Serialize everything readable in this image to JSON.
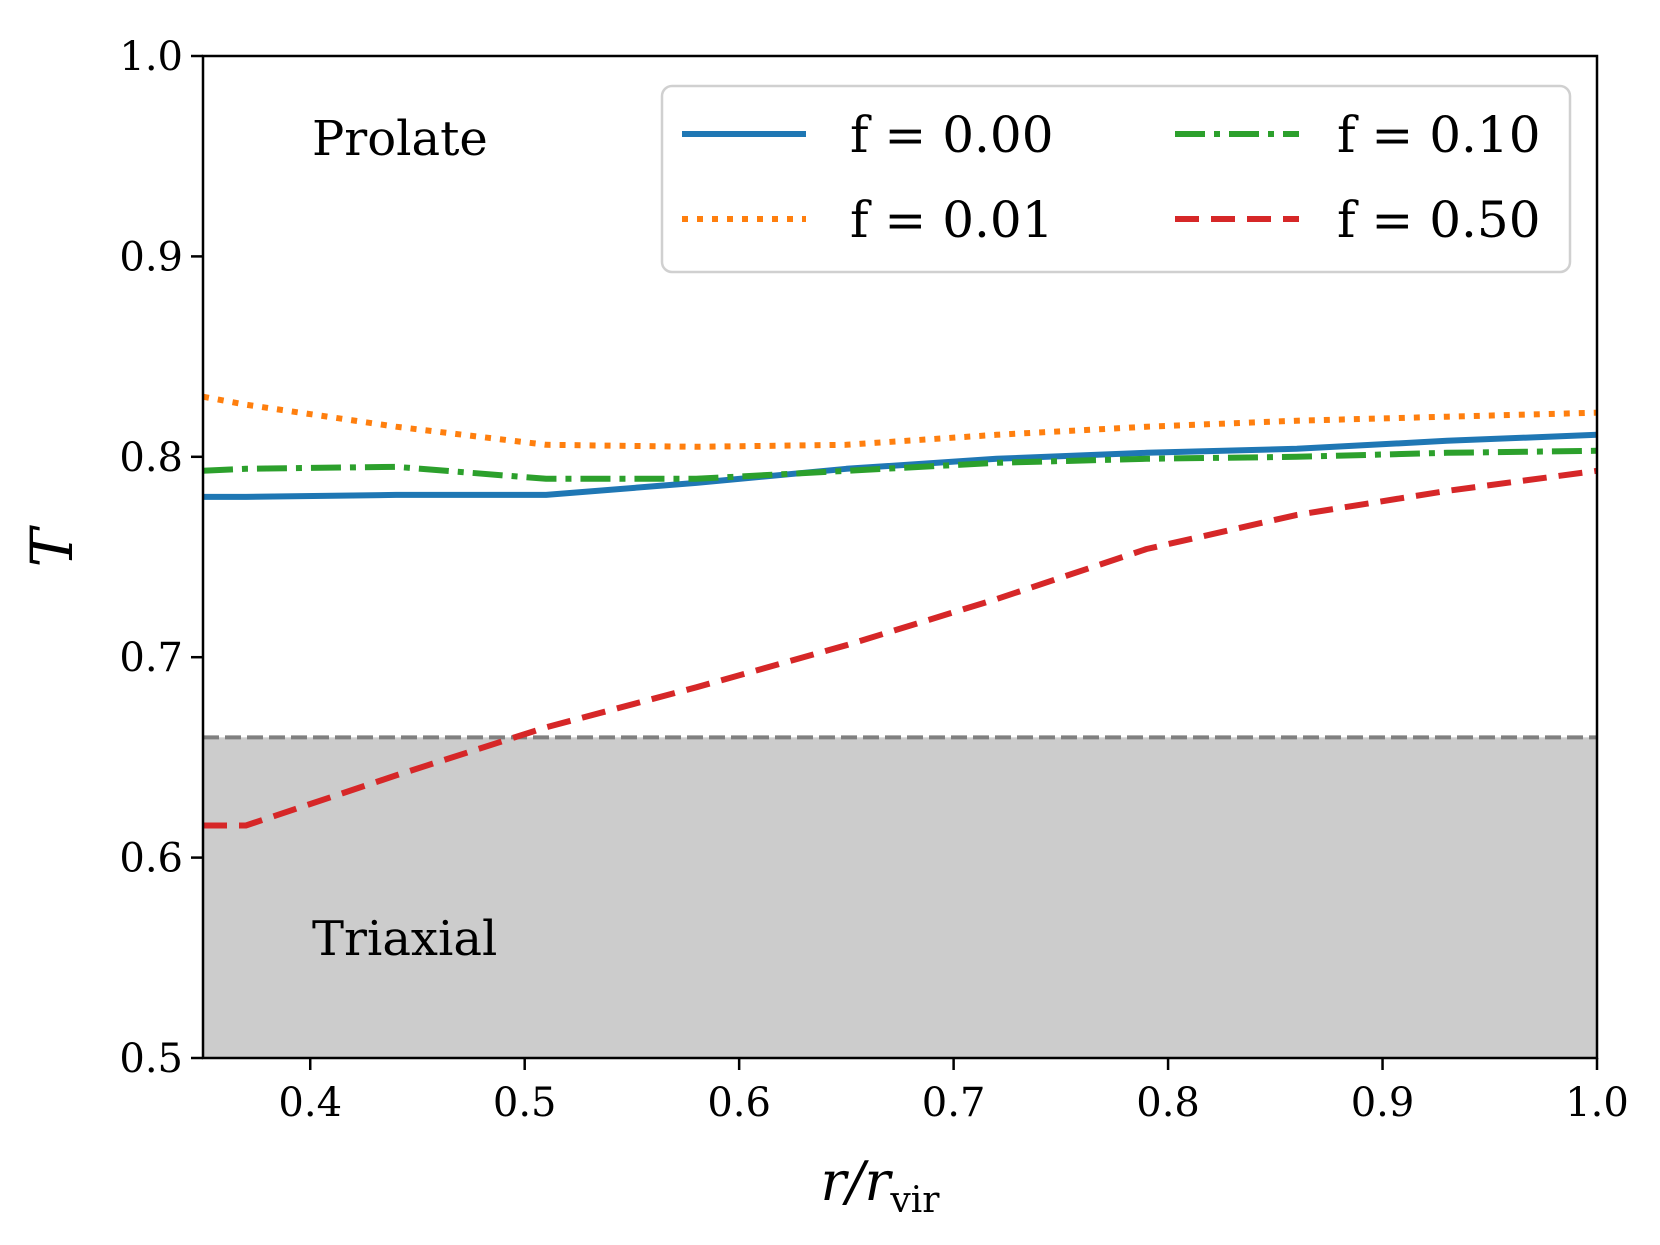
{
  "chart_data": {
    "type": "line",
    "xlabel": "r/r",
    "xlabel_sub": "vir",
    "ylabel": "T",
    "xlim": [
      0.35,
      1.0
    ],
    "ylim": [
      0.5,
      1.0
    ],
    "xticks": [
      "0.4",
      "0.5",
      "0.6",
      "0.7",
      "0.8",
      "0.9",
      "1.0"
    ],
    "yticks": [
      "0.5",
      "0.6",
      "0.7",
      "0.8",
      "0.9",
      "1.0"
    ],
    "grid": false,
    "legend_position": "top-right",
    "region_labels": {
      "top": "Prolate",
      "bottom": "Triaxial"
    },
    "threshold": {
      "y": 0.66,
      "shaded_below": true,
      "color": "#cccccc",
      "line_color": "#808080"
    },
    "series": [
      {
        "name": "f = 0.00",
        "color": "#1f77b4",
        "style": "solid",
        "x": [
          0.35,
          0.37,
          0.44,
          0.51,
          0.58,
          0.65,
          0.72,
          0.79,
          0.86,
          0.93,
          1.0
        ],
        "y": [
          0.78,
          0.78,
          0.781,
          0.781,
          0.787,
          0.794,
          0.799,
          0.802,
          0.804,
          0.808,
          0.811
        ]
      },
      {
        "name": "f = 0.01",
        "color": "#ff7f0e",
        "style": "dotted",
        "x": [
          0.35,
          0.37,
          0.44,
          0.51,
          0.58,
          0.65,
          0.72,
          0.79,
          0.86,
          0.93,
          1.0
        ],
        "y": [
          0.83,
          0.826,
          0.815,
          0.806,
          0.805,
          0.806,
          0.811,
          0.815,
          0.818,
          0.82,
          0.822
        ]
      },
      {
        "name": "f = 0.10",
        "color": "#2ca02c",
        "style": "dashdot",
        "x": [
          0.35,
          0.37,
          0.44,
          0.51,
          0.58,
          0.65,
          0.72,
          0.79,
          0.86,
          0.93,
          1.0
        ],
        "y": [
          0.793,
          0.794,
          0.795,
          0.789,
          0.789,
          0.793,
          0.797,
          0.799,
          0.8,
          0.802,
          0.803
        ]
      },
      {
        "name": "f = 0.50",
        "color": "#d62728",
        "style": "dashed",
        "x": [
          0.35,
          0.37,
          0.44,
          0.51,
          0.58,
          0.65,
          0.72,
          0.79,
          0.86,
          0.93,
          1.0
        ],
        "y": [
          0.616,
          0.616,
          0.641,
          0.665,
          0.685,
          0.706,
          0.729,
          0.754,
          0.771,
          0.783,
          0.793
        ]
      }
    ]
  }
}
